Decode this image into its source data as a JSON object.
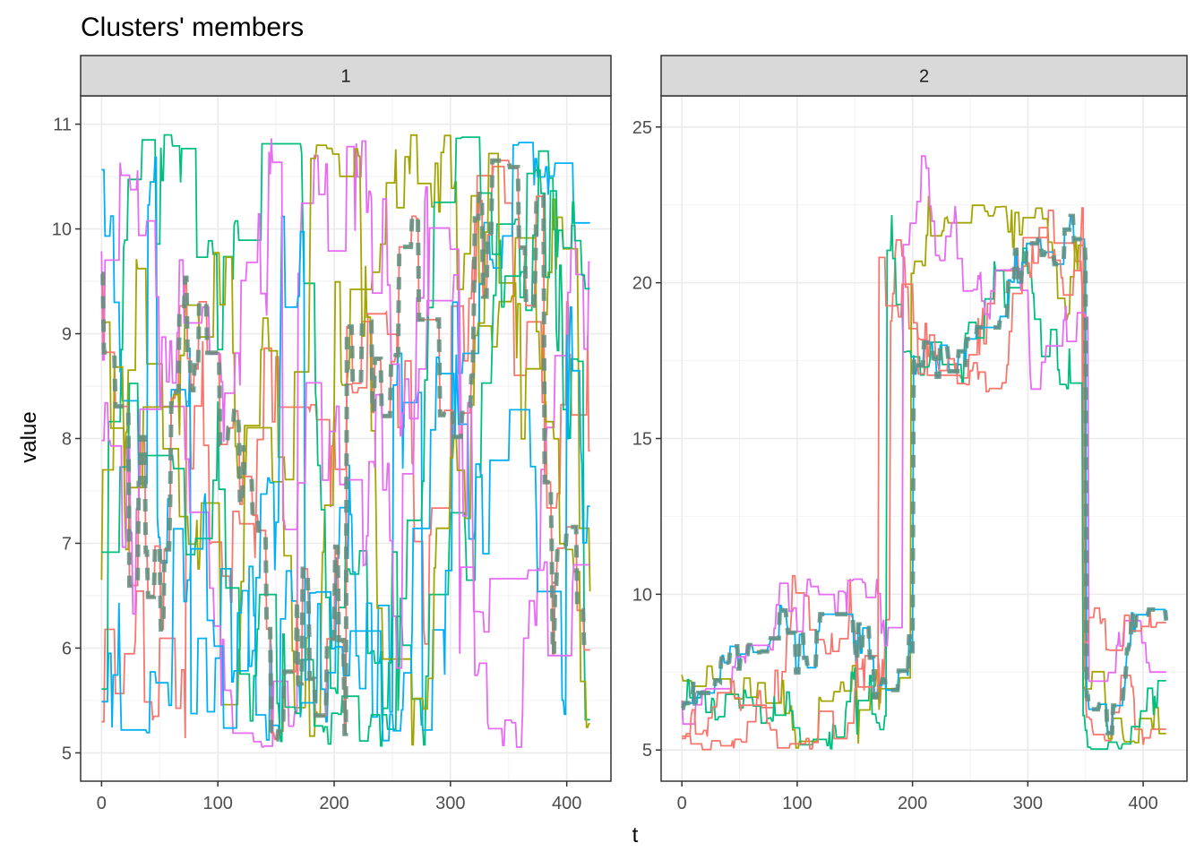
{
  "chart_data": {
    "type": "line",
    "title": "Clusters' members",
    "xlabel": "t",
    "ylabel": "value",
    "grid": true,
    "legend": "none",
    "series_colors": [
      "#F8766D",
      "#A3A500",
      "#00BF7D",
      "#00B0F6",
      "#E76BF3"
    ],
    "centroid_color": "#5f8f7f",
    "panels": [
      {
        "strip": "1",
        "xlim": [
          -18,
          438
        ],
        "ylim": [
          4.73,
          11.27
        ],
        "x_ticks": [
          0,
          100,
          200,
          300,
          400
        ],
        "x_tick_labels": [
          "0",
          "100",
          "200",
          "300",
          "400"
        ],
        "y_ticks": [
          5,
          6,
          7,
          8,
          9,
          10,
          11
        ],
        "y_tick_labels": [
          "5",
          "6",
          "7",
          "8",
          "9",
          "10",
          "11"
        ],
        "t_range": [
          0,
          420
        ],
        "value_range": [
          5.0,
          10.9
        ],
        "n_members": 10,
        "pattern": "stationary noise between 5 and 11"
      },
      {
        "strip": "2",
        "xlim": [
          -18,
          438
        ],
        "ylim": [
          4.0,
          26.0
        ],
        "x_ticks": [
          0,
          100,
          200,
          300,
          400
        ],
        "x_tick_labels": [
          "0",
          "100",
          "200",
          "300",
          "400"
        ],
        "y_ticks": [
          5,
          10,
          15,
          20,
          25
        ],
        "y_tick_labels": [
          "5",
          "10",
          "15",
          "20",
          "25"
        ],
        "t_range": [
          0,
          420
        ],
        "value_range": [
          5.0,
          24.7
        ],
        "n_members": 6,
        "pattern": "low (~5-10) until t≈195, jump to ~17-24 until t≈350, back to ~5-9"
      }
    ]
  }
}
